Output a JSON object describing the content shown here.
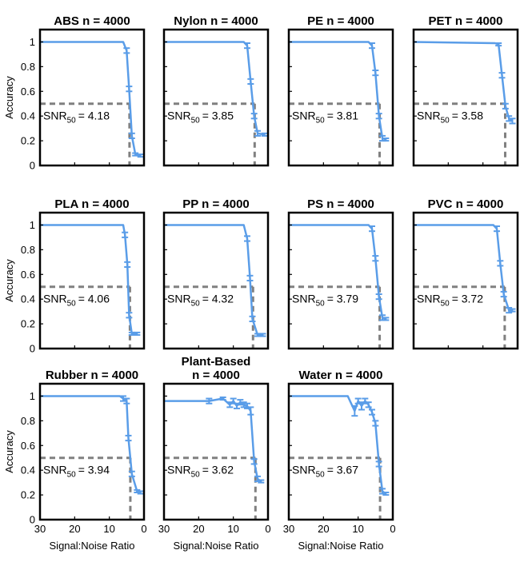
{
  "chart_data": {
    "type": "line",
    "xlabel": "Signal:Noise Ratio",
    "ylabel": "Accuracy",
    "xlim": [
      0,
      30
    ],
    "x_reversed": true,
    "ylim": [
      0,
      1.1
    ],
    "xticks": [
      30,
      20,
      10,
      0
    ],
    "yticks": [
      0,
      0.2,
      0.4,
      0.6,
      0.8,
      1
    ],
    "grid": false,
    "line_color": "#5a9de8",
    "reference_color": "#808080",
    "reference_level": 0.5,
    "snr_prefix": "SNR",
    "snr_subscript": "50",
    "panels": [
      {
        "title": "ABS n = 4000",
        "snr50": 4.18,
        "snr50_label": "= 4.18",
        "x": [
          30,
          6,
          5,
          4.3,
          3.5,
          2.5,
          1
        ],
        "y": [
          1,
          1,
          0.93,
          0.62,
          0.24,
          0.09,
          0.08
        ],
        "err": [
          0,
          0,
          0.02,
          0.02,
          0.02,
          0.01,
          0.01
        ]
      },
      {
        "title": "Nylon n = 4000",
        "snr50": 3.85,
        "snr50_label": "= 3.85",
        "x": [
          30,
          7,
          6,
          5,
          4,
          3,
          1
        ],
        "y": [
          1,
          1,
          0.97,
          0.68,
          0.4,
          0.26,
          0.25
        ],
        "err": [
          0,
          0,
          0.02,
          0.02,
          0.02,
          0.02,
          0.01
        ]
      },
      {
        "title": "PE n = 4000",
        "snr50": 3.81,
        "snr50_label": "= 3.81",
        "x": [
          30,
          7,
          6,
          5,
          4,
          3,
          2
        ],
        "y": [
          1,
          1,
          0.97,
          0.75,
          0.4,
          0.22,
          0.21
        ],
        "err": [
          0,
          0,
          0.02,
          0.02,
          0.02,
          0.02,
          0.01
        ]
      },
      {
        "title": "PET n = 4000",
        "snr50": 3.58,
        "snr50_label": "= 3.58",
        "x": [
          30,
          6.5,
          5.5,
          4.5,
          3.5,
          2.5,
          1.5
        ],
        "y": [
          1,
          0.99,
          0.98,
          0.73,
          0.48,
          0.38,
          0.36
        ],
        "err": [
          0,
          0,
          0.01,
          0.02,
          0.02,
          0.02,
          0.02
        ]
      },
      {
        "title": "PLA n = 4000",
        "snr50": 4.06,
        "snr50_label": "= 4.06",
        "x": [
          30,
          6,
          5.5,
          4.8,
          4.3,
          3.5,
          2
        ],
        "y": [
          1,
          1,
          0.92,
          0.68,
          0.27,
          0.12,
          0.12
        ],
        "err": [
          0,
          0,
          0.02,
          0.02,
          0.02,
          0.01,
          0.01
        ]
      },
      {
        "title": "PP n = 4000",
        "snr50": 4.32,
        "snr50_label": "= 4.32",
        "x": [
          30,
          7,
          6,
          5.2,
          4.5,
          3,
          1.5
        ],
        "y": [
          1,
          1,
          0.89,
          0.57,
          0.24,
          0.11,
          0.11
        ],
        "err": [
          0,
          0,
          0.02,
          0.02,
          0.02,
          0.01,
          0.01
        ]
      },
      {
        "title": "PS n = 4000",
        "snr50": 3.79,
        "snr50_label": "= 3.79",
        "x": [
          30,
          7,
          6,
          5,
          4,
          3,
          2
        ],
        "y": [
          1,
          1,
          0.97,
          0.73,
          0.42,
          0.25,
          0.24
        ],
        "err": [
          0,
          0,
          0.02,
          0.02,
          0.02,
          0.02,
          0.01
        ]
      },
      {
        "title": "PVC n = 4000",
        "snr50": 3.72,
        "snr50_label": "= 3.72",
        "x": [
          30,
          7,
          6,
          5,
          4,
          2.5,
          1.5
        ],
        "y": [
          1,
          1,
          0.97,
          0.69,
          0.44,
          0.31,
          0.31
        ],
        "err": [
          0,
          0,
          0.02,
          0.02,
          0.02,
          0.02,
          0.01
        ]
      },
      {
        "title": "Rubber n = 4000",
        "snr50": 3.94,
        "snr50_label": "= 3.94",
        "x": [
          30,
          7,
          6,
          5,
          4.5,
          3.5,
          2,
          1
        ],
        "y": [
          1,
          1,
          0.98,
          0.96,
          0.66,
          0.37,
          0.23,
          0.22
        ],
        "err": [
          0,
          0,
          0.02,
          0.02,
          0.02,
          0.02,
          0.01,
          0.01
        ]
      },
      {
        "title": "Plant-Based\nn = 4000",
        "title_lines": [
          "Plant-Based",
          "n = 4000"
        ],
        "snr50": 3.62,
        "snr50_label": "= 3.62",
        "x": [
          30,
          17,
          13,
          11,
          10,
          9,
          8,
          7,
          6,
          5,
          4,
          3,
          2
        ],
        "y": [
          0.96,
          0.96,
          0.98,
          0.93,
          0.96,
          0.92,
          0.95,
          0.93,
          0.92,
          0.88,
          0.47,
          0.33,
          0.31
        ],
        "err": [
          0,
          0.02,
          0.01,
          0.02,
          0.02,
          0.02,
          0.02,
          0.02,
          0.02,
          0.03,
          0.02,
          0.02,
          0.01
        ]
      },
      {
        "title": "Water n = 4000",
        "snr50": 3.67,
        "snr50_label": "= 3.67",
        "x": [
          30,
          13,
          11,
          10,
          9,
          8,
          7,
          6,
          5,
          4,
          3,
          2
        ],
        "y": [
          1,
          1,
          0.88,
          0.96,
          0.92,
          0.96,
          0.93,
          0.87,
          0.78,
          0.45,
          0.23,
          0.21
        ],
        "err": [
          0,
          0,
          0.04,
          0.02,
          0.03,
          0.02,
          0.02,
          0.02,
          0.02,
          0.02,
          0.02,
          0.01
        ]
      }
    ]
  }
}
